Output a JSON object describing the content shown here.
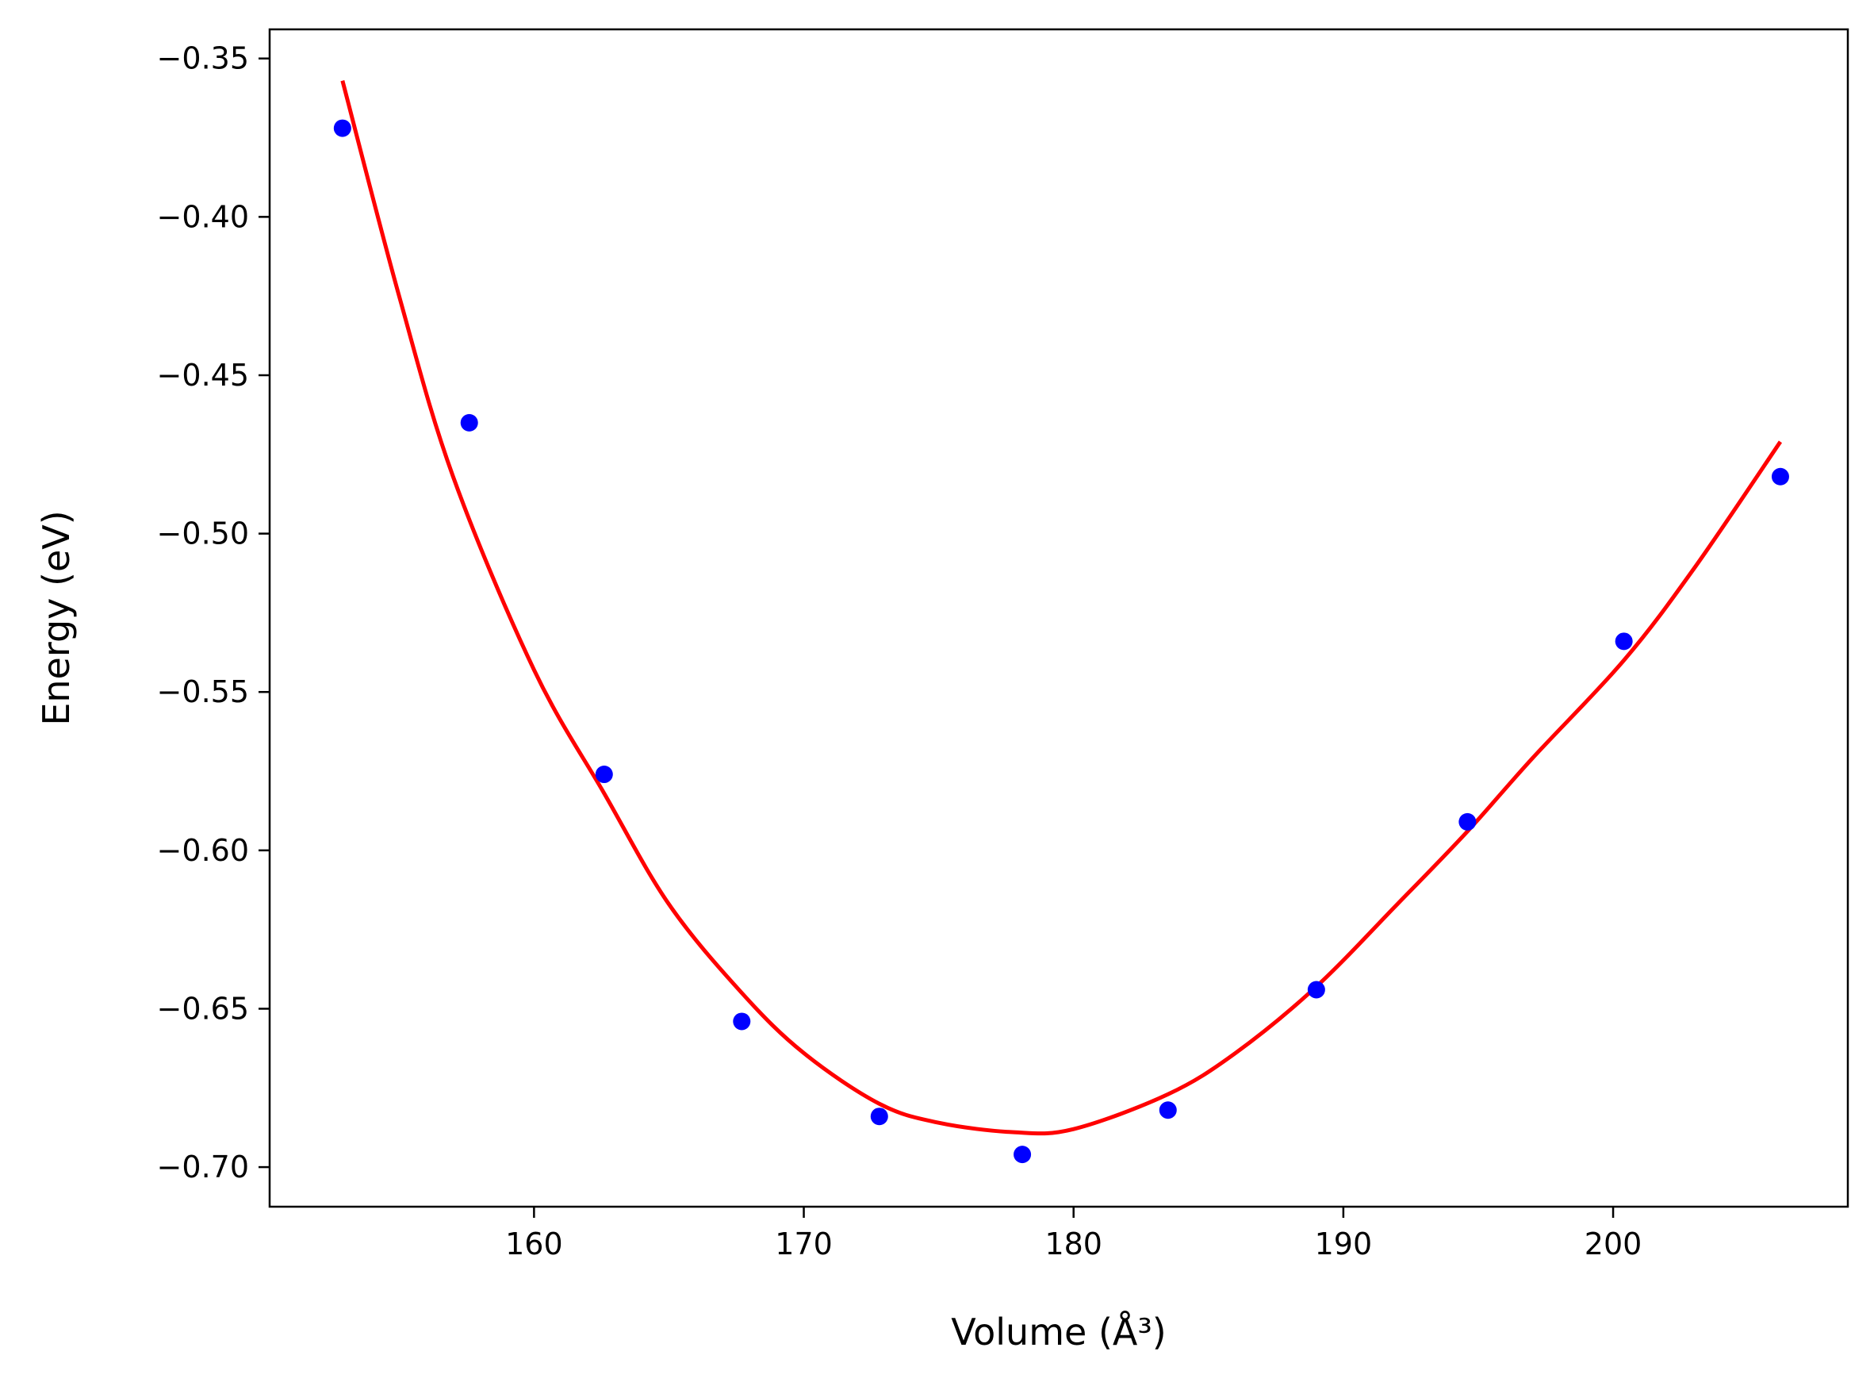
{
  "chart_data": {
    "type": "scatter",
    "xlabel": "Volume (Å³)",
    "ylabel": "Energy (eV)",
    "xlim": [
      150.2,
      208.7
    ],
    "ylim": [
      -0.7125,
      -0.3408
    ],
    "xticks": [
      160,
      170,
      180,
      190,
      200
    ],
    "xtick_labels": [
      "160",
      "170",
      "180",
      "190",
      "200"
    ],
    "yticks": [
      -0.35,
      -0.4,
      -0.45,
      -0.5,
      -0.55,
      -0.6,
      -0.65,
      -0.7
    ],
    "ytick_labels": [
      "−0.35",
      "−0.40",
      "−0.45",
      "−0.50",
      "−0.55",
      "−0.60",
      "−0.65",
      "−0.70"
    ],
    "grid": false,
    "legend": "none",
    "series": [
      {
        "kind": "scatter",
        "color": "#0000ff",
        "points": [
          {
            "x": 152.9,
            "y": -0.372
          },
          {
            "x": 157.6,
            "y": -0.465
          },
          {
            "x": 162.6,
            "y": -0.576
          },
          {
            "x": 167.7,
            "y": -0.654
          },
          {
            "x": 172.8,
            "y": -0.684
          },
          {
            "x": 178.1,
            "y": -0.696
          },
          {
            "x": 183.5,
            "y": -0.682
          },
          {
            "x": 189.0,
            "y": -0.644
          },
          {
            "x": 194.6,
            "y": -0.591
          },
          {
            "x": 200.4,
            "y": -0.534
          },
          {
            "x": 206.2,
            "y": -0.482
          }
        ]
      },
      {
        "kind": "line",
        "color": "#ff0000",
        "points": [
          {
            "x": 152.9,
            "y": -0.357
          },
          {
            "x": 155.0,
            "y": -0.425
          },
          {
            "x": 157.0,
            "y": -0.482
          },
          {
            "x": 160.0,
            "y": -0.543
          },
          {
            "x": 162.6,
            "y": -0.582
          },
          {
            "x": 165.0,
            "y": -0.617
          },
          {
            "x": 167.7,
            "y": -0.645
          },
          {
            "x": 170.0,
            "y": -0.664
          },
          {
            "x": 172.8,
            "y": -0.68
          },
          {
            "x": 175.0,
            "y": -0.686
          },
          {
            "x": 177.8,
            "y": -0.689
          },
          {
            "x": 180.0,
            "y": -0.688
          },
          {
            "x": 183.5,
            "y": -0.677
          },
          {
            "x": 186.0,
            "y": -0.664
          },
          {
            "x": 189.0,
            "y": -0.643
          },
          {
            "x": 192.0,
            "y": -0.617
          },
          {
            "x": 194.6,
            "y": -0.594
          },
          {
            "x": 197.0,
            "y": -0.571
          },
          {
            "x": 200.4,
            "y": -0.54
          },
          {
            "x": 203.0,
            "y": -0.511
          },
          {
            "x": 206.2,
            "y": -0.471
          }
        ]
      }
    ]
  }
}
